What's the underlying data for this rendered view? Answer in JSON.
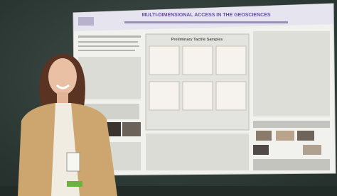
{
  "poster": {
    "title": "MULTI-DIMENSIONAL ACCESS IN THE GEOSCIENCES",
    "panel_title": "Preliminary Tactile Samples"
  }
}
